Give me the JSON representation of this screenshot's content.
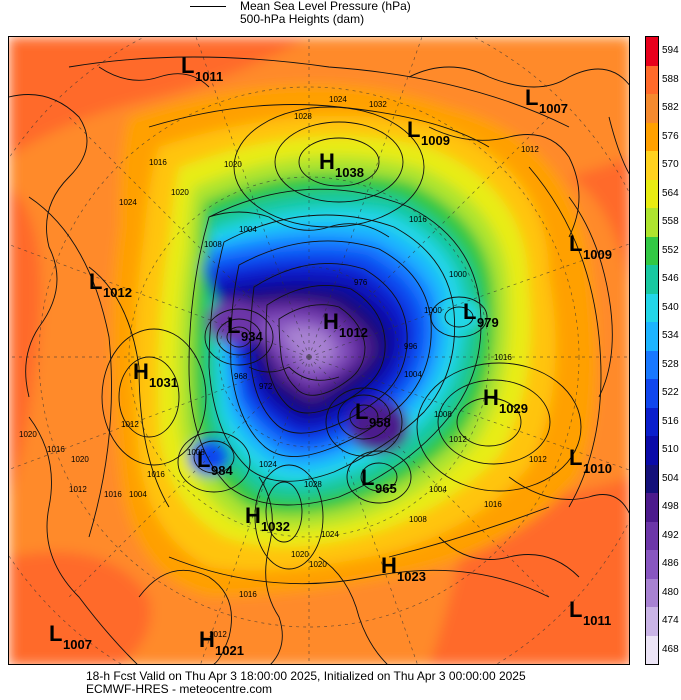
{
  "legend": {
    "line1": "Mean Sea Level Pressure (hPa)",
    "line2": "500-hPa Heights (dam)"
  },
  "colorbar": {
    "ticks": [
      "594",
      "588",
      "582",
      "576",
      "570",
      "564",
      "558",
      "552",
      "546",
      "540",
      "534",
      "528",
      "522",
      "516",
      "510",
      "504",
      "498",
      "492",
      "486",
      "480",
      "474",
      "468"
    ],
    "colors": [
      "#e8001c",
      "#ff6a2a",
      "#f58a2e",
      "#ffa000",
      "#ffd21e",
      "#e8ec12",
      "#aee42e",
      "#32c844",
      "#18c8a0",
      "#22d6e8",
      "#1cb4ff",
      "#1878ff",
      "#1046ee",
      "#0a1ecc",
      "#0a0aa8",
      "#14107a",
      "#4c1a8c",
      "#6c36a8",
      "#8856c0",
      "#a882d2",
      "#cab4e6",
      "#ece4f6"
    ]
  },
  "pressure_systems": [
    {
      "type": "L",
      "value": "1011"
    },
    {
      "type": "L",
      "value": "1007"
    },
    {
      "type": "L",
      "value": "1009"
    },
    {
      "type": "H",
      "value": "1038"
    },
    {
      "type": "L",
      "value": "1009"
    },
    {
      "type": "L",
      "value": "1012"
    },
    {
      "type": "L",
      "value": "934"
    },
    {
      "type": "H",
      "value": "1012"
    },
    {
      "type": "L",
      "value": "979"
    },
    {
      "type": "H",
      "value": "1031"
    },
    {
      "type": "H",
      "value": "1029"
    },
    {
      "type": "L",
      "value": "958"
    },
    {
      "type": "L",
      "value": "984"
    },
    {
      "type": "L",
      "value": "965"
    },
    {
      "type": "L",
      "value": "1010"
    },
    {
      "type": "H",
      "value": "1032"
    },
    {
      "type": "H",
      "value": "1023"
    },
    {
      "type": "L",
      "value": "1011"
    },
    {
      "type": "L",
      "value": "1007"
    },
    {
      "type": "H",
      "value": "1021"
    }
  ],
  "isobar_labels": [
    "1024",
    "1028",
    "1032",
    "1016",
    "1020",
    "1024",
    "1012",
    "1016",
    "1020",
    "1008",
    "1004",
    "976",
    "968",
    "972",
    "1000",
    "996",
    "1000",
    "1004",
    "1008",
    "1012",
    "1016",
    "1020",
    "1016",
    "1020",
    "1012",
    "1016",
    "1008",
    "1004",
    "1012",
    "1016",
    "1008",
    "1004",
    "1012",
    "1016",
    "1020",
    "1024",
    "1028",
    "1020",
    "1024",
    "1016",
    "1012"
  ],
  "footer": {
    "line1": "18-h Fcst Valid on Thu Apr  3 18:00:00 2025, Initialized on Thu Apr  3 00:00:00 2025",
    "line2": "ECMWF-HRES  - meteocentre.com"
  }
}
